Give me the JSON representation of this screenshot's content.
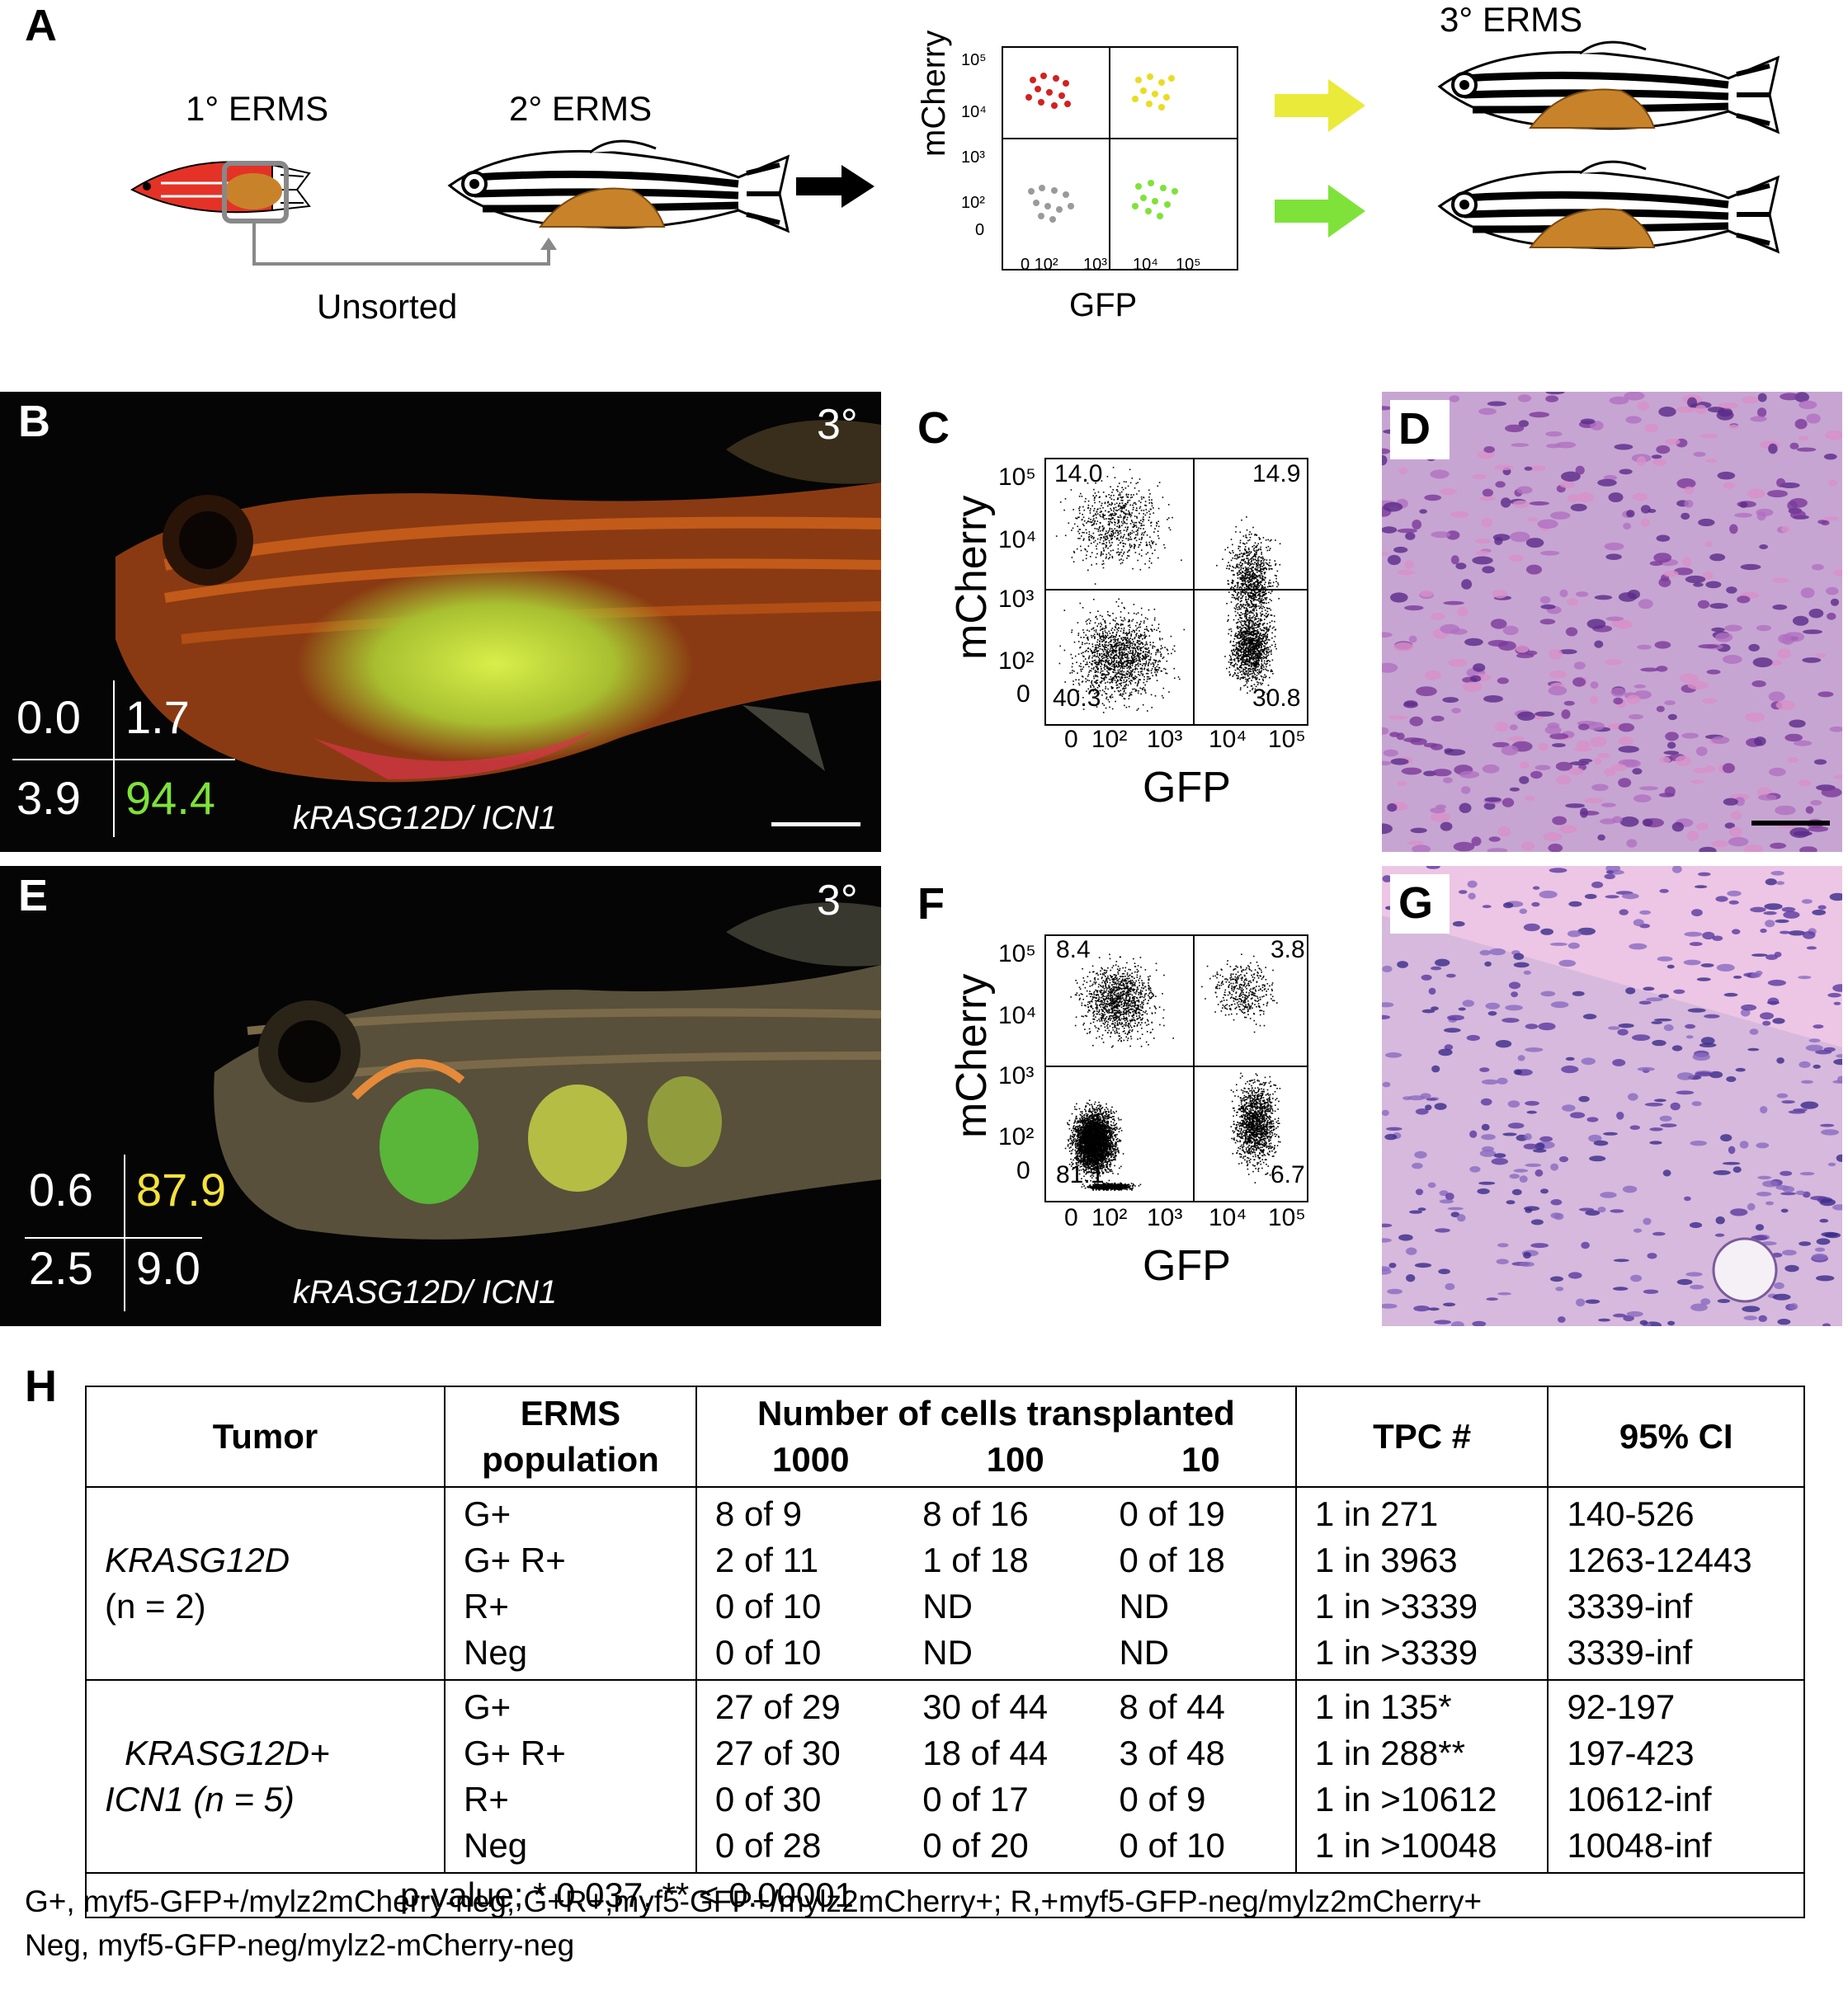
{
  "panels": {
    "A": {
      "label": "A",
      "primary": "1° ERMS",
      "secondary": "2° ERMS",
      "tertiary": "3° ERMS",
      "unsorted": "Unsorted",
      "fcs": {
        "ylabel": "mCherry",
        "xlabel": "GFP",
        "yticks": [
          "10⁵",
          "10⁴",
          "10³",
          "10²",
          "0"
        ],
        "xticks": [
          "0 10²",
          "10³",
          "10⁴",
          "10⁵"
        ]
      }
    },
    "B": {
      "label": "B",
      "passage": "3°",
      "genotype": "kRASG12D/ ICN1",
      "quadrants": {
        "ul": "0.0",
        "ur": "1.7",
        "ll": "3.9",
        "lr": "94.4"
      },
      "highlight_color": "#7ee23a"
    },
    "C": {
      "label": "C",
      "ylabel": "mCherry",
      "xlabel": "GFP",
      "quadrants": {
        "ul": "14.0",
        "ur": "14.9",
        "ll": "40.3",
        "lr": "30.8"
      },
      "yticks": [
        "10⁵",
        "10⁴",
        "10³",
        "10²",
        "0"
      ],
      "xticks": [
        "0",
        "10²",
        "10³",
        "10⁴",
        "10⁵"
      ]
    },
    "D": {
      "label": "D"
    },
    "E": {
      "label": "E",
      "passage": "3°",
      "genotype": "kRASG12D/ ICN1",
      "quadrants": {
        "ul": "0.6",
        "ur": "87.9",
        "ll": "2.5",
        "lr": "9.0"
      },
      "highlight_color": "#f4e23a"
    },
    "F": {
      "label": "F",
      "ylabel": "mCherry",
      "xlabel": "GFP",
      "quadrants": {
        "ul": "8.4",
        "ur": "3.8",
        "ll": "81.1",
        "lr": "6.7"
      },
      "yticks": [
        "10⁵",
        "10⁴",
        "10³",
        "10²",
        "0"
      ],
      "xticks": [
        "0",
        "10²",
        "10³",
        "10⁴",
        "10⁵"
      ]
    },
    "G": {
      "label": "G"
    }
  },
  "table": {
    "label": "H",
    "headers": {
      "tumor": "Tumor",
      "population": [
        "ERMS",
        "population"
      ],
      "cells": "Number of cells transplanted",
      "doses": [
        "1000",
        "100",
        "10"
      ],
      "tpc": "TPC #",
      "ci": "95% CI"
    },
    "groups": [
      {
        "tumor_lines": [
          "",
          "KRASG12D",
          "(n = 2)"
        ],
        "rows": [
          {
            "pop": "G+",
            "d1000": "8 of 9",
            "d100": "8 of 16",
            "d10": "0 of 19",
            "tpc": "1 in 271",
            "ci": "140-526"
          },
          {
            "pop": "G+ R+",
            "d1000": "2 of 11",
            "d100": "1 of 18",
            "d10": "0 of 18",
            "tpc": "1 in 3963",
            "ci": "1263-12443"
          },
          {
            "pop": "R+",
            "d1000": "0 of 10",
            "d100": "ND",
            "d10": "ND",
            "tpc": "1 in >3339",
            "ci": "3339-inf"
          },
          {
            "pop": "Neg",
            "d1000": "0 of 10",
            "d100": "ND",
            "d10": "ND",
            "tpc": "1 in >3339",
            "ci": "3339-inf"
          }
        ]
      },
      {
        "tumor_lines": [
          "",
          "KRASG12D+",
          "ICN1 (n = 5)"
        ],
        "rows": [
          {
            "pop": "G+",
            "d1000": "27 of 29",
            "d100": "30 of 44",
            "d10": "8 of 44",
            "tpc": "1 in 135*",
            "ci": "92-197"
          },
          {
            "pop": "G+ R+",
            "d1000": "27 of 30",
            "d100": "18 of 44",
            "d10": "3 of 48",
            "tpc": "1 in 288**",
            "ci": "197-423"
          },
          {
            "pop": "R+",
            "d1000": "0 of 30",
            "d100": "0 of 17",
            "d10": "0 of 9",
            "tpc": "1 in >10612",
            "ci": "10612-inf"
          },
          {
            "pop": "Neg",
            "d1000": "0 of 28",
            "d100": "0 of 20",
            "d10": "0 of 10",
            "tpc": "1 in >10048",
            "ci": "10048-inf"
          }
        ]
      }
    ],
    "pvalue": "p-value; * 0.037, ** < 0.00001",
    "footnote_1": "G+, myf5-GFP+/mylz2mCherry-neg; G+R+,myf5-GFP+/mylz2mCherry+; R,+myf5-GFP-neg/mylz2mCherry+",
    "footnote_2": "Neg, myf5-GFP-neg/mylz2-mCherry-neg"
  }
}
